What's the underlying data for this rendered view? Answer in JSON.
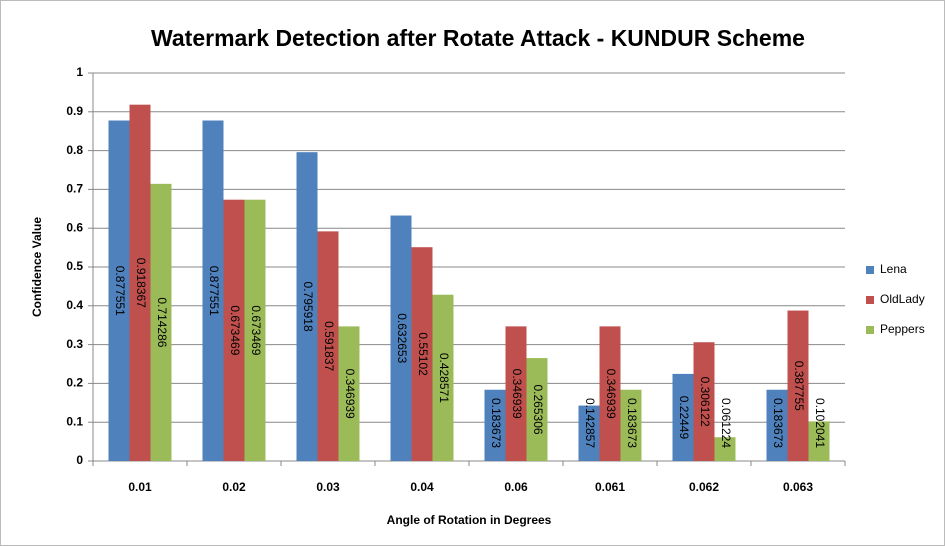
{
  "chart_data": {
    "type": "bar",
    "title": "Watermark Detection  after Rotate Attack - KUNDUR Scheme",
    "x_label": "Angle of Rotation in Degrees",
    "y_label": "Confidence Value",
    "categories": [
      "0.01",
      "0.02",
      "0.03",
      "0.04",
      "0.06",
      "0.061",
      "0.062",
      "0.063"
    ],
    "series": [
      {
        "name": "Lena",
        "color": "#4f81bd",
        "values": [
          0.877551,
          0.877551,
          0.795918,
          0.632653,
          0.183673,
          0.142857,
          0.22449,
          0.183673
        ]
      },
      {
        "name": "OldLady",
        "color": "#c0504d",
        "values": [
          0.918367,
          0.673469,
          0.591837,
          0.55102,
          0.346939,
          0.346939,
          0.306122,
          0.387755
        ]
      },
      {
        "name": "Peppers",
        "color": "#9bbb59",
        "values": [
          0.714286,
          0.673469,
          0.346939,
          0.428571,
          0.265306,
          0.183673,
          0.061224,
          0.102041
        ]
      }
    ],
    "ylim": [
      0,
      1
    ],
    "yticks": [
      0,
      0.1,
      0.2,
      0.3,
      0.4,
      0.5,
      0.6,
      0.7,
      0.8,
      0.9,
      1
    ],
    "grid": true,
    "legend": "right"
  }
}
